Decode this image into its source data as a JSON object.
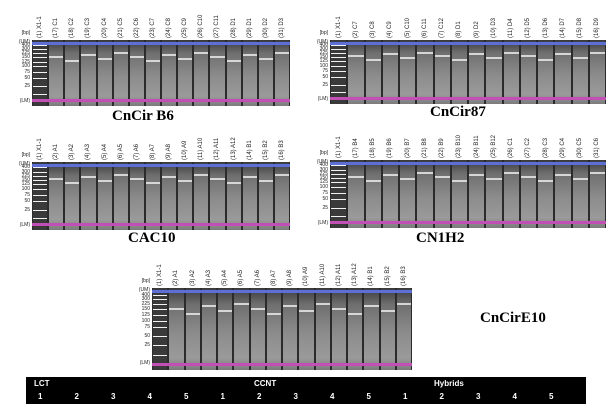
{
  "panels": [
    {
      "title": "CnCir B6",
      "unit": "[bp]",
      "axis_ticks": [
        "(UM)",
        "400",
        "300",
        "225",
        "150",
        "125",
        "100",
        "75",
        "50",
        "25",
        "(LM)"
      ],
      "lanes": [
        "(1) X1-1",
        "(17) C1",
        "(18) C2",
        "(19) C3",
        "(20) C4",
        "(21) C5",
        "(22) C6",
        "(23) C7",
        "(24) C8",
        "(25) C9",
        "(26) C10",
        "(27) C11",
        "(28) D1",
        "(29) D1",
        "(30) D2",
        "(31) D3"
      ]
    },
    {
      "title": "CnCir87",
      "unit": "[bp]",
      "axis_ticks": [
        "(UM)",
        "400",
        "300",
        "225",
        "150",
        "125",
        "100",
        "75",
        "50",
        "25",
        "(LM)"
      ],
      "lanes": [
        "(1) X1-1",
        "(2) C7",
        "(3) C8",
        "(4) C9",
        "(5) C10",
        "(6) C11",
        "(7) C12",
        "(8) D1",
        "(9) D2",
        "(10) D3",
        "(11) D4",
        "(12) D5",
        "(13) D6",
        "(14) D7",
        "(15) D8",
        "(16) D9"
      ]
    },
    {
      "title": "CAC10",
      "unit": "[bp]",
      "axis_ticks": [
        "(UM)",
        "400",
        "300",
        "225",
        "150",
        "125",
        "100",
        "75",
        "50",
        "25",
        "(LM)"
      ],
      "lanes": [
        "(1) X1-1",
        "(2) A1",
        "(3) A2",
        "(4) A3",
        "(5) A4",
        "(6) A5",
        "(7) A6",
        "(8) A7",
        "(9) A8",
        "(10) A9",
        "(11) A10",
        "(12) A11",
        "(13) A12",
        "(14) B1",
        "(15) B2",
        "(16) B3"
      ]
    },
    {
      "title": "CN1H2",
      "unit": "[bp]",
      "axis_ticks": [
        "(UM)",
        "400",
        "300",
        "225",
        "150",
        "125",
        "100",
        "75",
        "50",
        "25",
        "(LM)"
      ],
      "lanes": [
        "(1) X1-1",
        "(17) B4",
        "(18) B5",
        "(19) B6",
        "(20) B7",
        "(21) B8",
        "(22) B9",
        "(23) B10",
        "(24) B11",
        "(25) B12",
        "(26) C1",
        "(27) C2",
        "(28) C3",
        "(29) C4",
        "(30) C5",
        "(31) C6"
      ]
    },
    {
      "title": "CnCirE10",
      "unit": "[bp]",
      "axis_ticks": [
        "(UM)",
        "400",
        "300",
        "225",
        "150",
        "125",
        "100",
        "75",
        "50",
        "25",
        "(LM)"
      ],
      "lanes": [
        "(1) X1-1",
        "(2) A1",
        "(3) A2",
        "(4) A3",
        "(5) A4",
        "(6) A5",
        "(7) A6",
        "(8) A7",
        "(9) A8",
        "(10) A9",
        "(11) A10",
        "(12) A11",
        "(13) A12",
        "(14) B1",
        "(15) B2",
        "(16) B3"
      ]
    }
  ],
  "legend": {
    "groups": [
      "LCT",
      "CCNT",
      "Hybrids"
    ],
    "numbers": [
      "1",
      "2",
      "3",
      "4",
      "5",
      "1",
      "2",
      "3",
      "4",
      "5",
      "1",
      "2",
      "3",
      "4",
      "5"
    ]
  },
  "colors": {
    "upper_marker": "#5b6fd6",
    "lower_marker": "#c24fb6",
    "gel_background": "#2b2b2b",
    "legend_bar": "#000000"
  }
}
